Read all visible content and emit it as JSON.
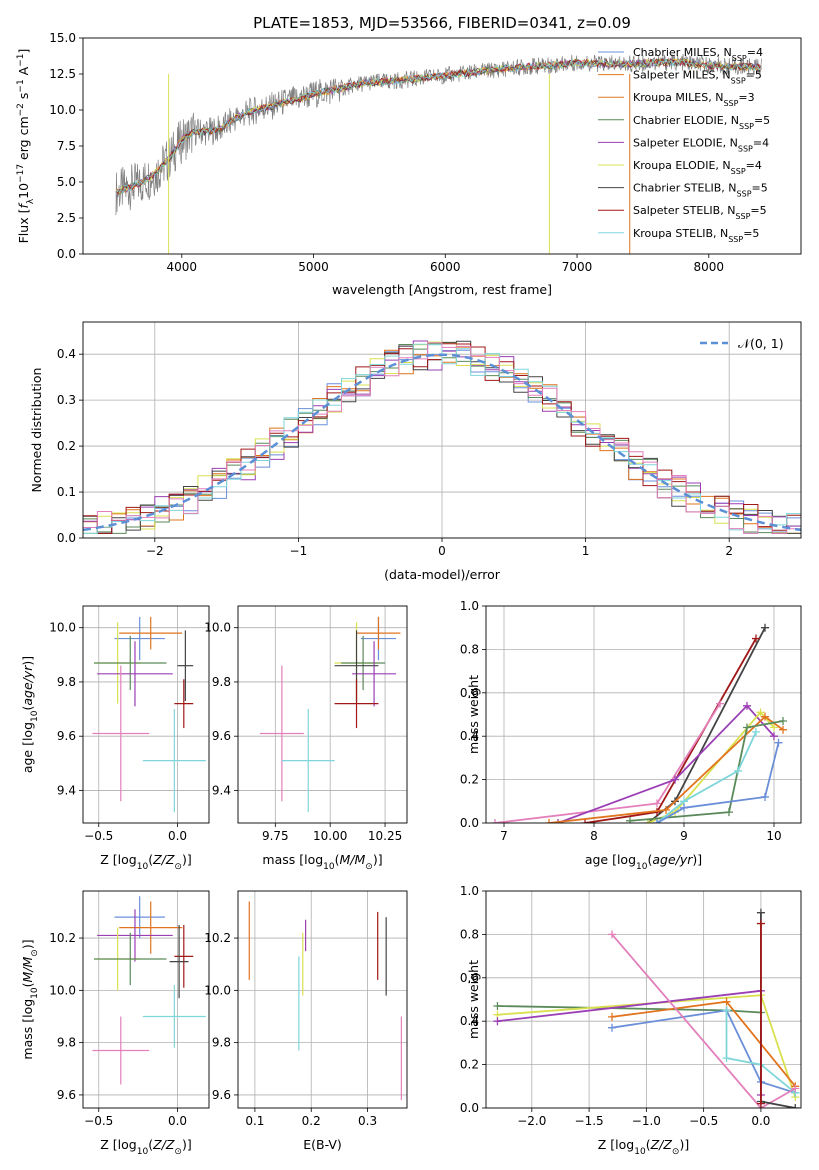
{
  "figure_title": "PLATE=1853, MJD=53566, FIBERID=0341, z=0.09",
  "colors": {
    "data_spectrum": "#7f7f7f",
    "chabrier_miles": "#6a8fd8",
    "salpeter_miles": "#e1741e",
    "kroupa_miles": "#e07b27",
    "chabrier_elodie": "#5a8a5a",
    "salpeter_elodie": "#9b3fb5",
    "kroupa_elodie": "#d9e050",
    "chabrier_stelib": "#444444",
    "salpeter_stelib": "#a01818",
    "kroupa_stelib": "#7fd6da",
    "pink": "#e37fbb",
    "normal": "#5b8fd6"
  },
  "chart_data": [
    {
      "id": "spectrum",
      "type": "line",
      "title": "PLATE=1853, MJD=53566, FIBERID=0341, z=0.09",
      "xlabel": "wavelength [Angstrom, rest frame]",
      "ylabel": "Flux [f_λ10^-17 erg cm^-2 s^-1 A^-1]",
      "xlim": [
        3250,
        8700
      ],
      "ylim": [
        0,
        15
      ],
      "xticks": [
        4000,
        5000,
        6000,
        7000,
        8000
      ],
      "yticks": [
        0.0,
        2.5,
        5.0,
        7.5,
        10.0,
        12.5,
        15.0
      ],
      "legend_position": "right",
      "series": [
        {
          "name": "Chabrier MILES, N_SSP=4",
          "key": "chabrier_miles"
        },
        {
          "name": "Salpeter MILES, N_SSP=5",
          "key": "salpeter_miles"
        },
        {
          "name": "Kroupa MILES, N_SSP=3",
          "key": "kroupa_miles"
        },
        {
          "name": "Chabrier ELODIE, N_SSP=5",
          "key": "chabrier_elodie"
        },
        {
          "name": "Salpeter ELODIE, N_SSP=4",
          "key": "salpeter_elodie"
        },
        {
          "name": "Kroupa ELODIE, N_SSP=4",
          "key": "kroupa_elodie"
        },
        {
          "name": "Chabrier STELIB, N_SSP=5",
          "key": "chabrier_stelib"
        },
        {
          "name": "Salpeter STELIB, N_SSP=5",
          "key": "salpeter_stelib"
        },
        {
          "name": "Kroupa STELIB, N_SSP=5",
          "key": "kroupa_stelib"
        }
      ],
      "data_spectrum": {
        "x": [
          3500,
          3600,
          3700,
          3800,
          3900,
          4000,
          4100,
          4200,
          4300,
          4400,
          4500,
          4600,
          4700,
          4800,
          4900,
          5000,
          5200,
          5400,
          5600,
          5800,
          6000,
          6200,
          6400,
          6600,
          6800,
          7000,
          7200,
          7400,
          7600,
          7800,
          8000,
          8200,
          8400
        ],
        "y": [
          4.3,
          4.6,
          5.0,
          5.6,
          6.6,
          7.9,
          8.5,
          8.5,
          8.7,
          9.4,
          9.8,
          10.1,
          10.3,
          10.6,
          10.8,
          11.1,
          11.5,
          11.9,
          12.0,
          12.2,
          12.4,
          12.6,
          12.8,
          13.0,
          13.1,
          13.3,
          13.2,
          13.2,
          13.3,
          13.3,
          13.1,
          13.0,
          13.0
        ]
      }
    },
    {
      "id": "residuals",
      "type": "histogram",
      "xlabel": "(data-model)/error",
      "ylabel": "Normed distribution",
      "xlim": [
        -2.5,
        2.5
      ],
      "ylim": [
        0,
        0.47
      ],
      "xticks": [
        -2,
        -1,
        0,
        1,
        2
      ],
      "yticks": [
        0.0,
        0.1,
        0.2,
        0.3,
        0.4
      ],
      "grid": true,
      "legend_position": "top-right",
      "legend": "𝒩(0, 1)"
    },
    {
      "id": "age_vs_Z",
      "type": "errorbar",
      "xlabel": "Z [log10(Z/Z⊙)]",
      "ylabel": "age  [log10(age/yr)]",
      "xlim": [
        -0.6,
        0.2
      ],
      "ylim": [
        9.28,
        10.08
      ],
      "xticks": [
        -0.5,
        0.0
      ],
      "yticks": [
        9.4,
        9.6,
        9.8,
        10.0
      ],
      "points": [
        {
          "key": "chabrier_miles",
          "x": -0.24,
          "xerr": 0.16,
          "y": 9.96,
          "yerr": 0.08
        },
        {
          "key": "salpeter_miles",
          "x": -0.17,
          "xerr": 0.2,
          "y": 9.98,
          "yerr": 0.06
        },
        {
          "key": "kroupa_elodie",
          "x": -0.38,
          "xerr": 0.15,
          "y": 9.87,
          "yerr": 0.15
        },
        {
          "key": "chabrier_elodie",
          "x": -0.3,
          "xerr": 0.23,
          "y": 9.87,
          "yerr": 0.1
        },
        {
          "key": "salpeter_elodie",
          "x": -0.27,
          "xerr": 0.24,
          "y": 9.83,
          "yerr": 0.12
        },
        {
          "key": "chabrier_stelib",
          "x": 0.05,
          "xerr": 0.05,
          "y": 9.86,
          "yerr": 0.13
        },
        {
          "key": "salpeter_stelib",
          "x": 0.04,
          "xerr": 0.06,
          "y": 9.72,
          "yerr": 0.09
        },
        {
          "key": "pink",
          "x": -0.36,
          "xerr": 0.18,
          "y": 9.61,
          "yerr": 0.25
        },
        {
          "key": "kroupa_stelib",
          "x": -0.02,
          "xerr": 0.2,
          "y": 9.51,
          "yerr": 0.19
        }
      ]
    },
    {
      "id": "age_vs_mass",
      "type": "errorbar",
      "xlabel": "mass [log10(M/M⊙)]",
      "xlim": [
        9.58,
        10.35
      ],
      "ylim": [
        9.28,
        10.08
      ],
      "xticks": [
        9.75,
        10.0,
        10.25
      ],
      "yticks": [
        9.4,
        9.6,
        9.8,
        10.0
      ],
      "points": [
        {
          "key": "chabrier_miles",
          "x": 10.22,
          "xerr": 0.08,
          "y": 9.96,
          "yerr": 0.08
        },
        {
          "key": "salpeter_miles",
          "x": 10.22,
          "xerr": 0.1,
          "y": 9.98,
          "yerr": 0.06
        },
        {
          "key": "kroupa_elodie",
          "x": 10.12,
          "xerr": 0.1,
          "y": 9.87,
          "yerr": 0.15
        },
        {
          "key": "chabrier_elodie",
          "x": 10.15,
          "xerr": 0.1,
          "y": 9.87,
          "yerr": 0.1
        },
        {
          "key": "salpeter_elodie",
          "x": 10.2,
          "xerr": 0.1,
          "y": 9.83,
          "yerr": 0.12
        },
        {
          "key": "chabrier_stelib",
          "x": 10.12,
          "xerr": 0.1,
          "y": 9.86,
          "yerr": 0.13
        },
        {
          "key": "salpeter_stelib",
          "x": 10.12,
          "xerr": 0.1,
          "y": 9.72,
          "yerr": 0.09
        },
        {
          "key": "pink",
          "x": 9.78,
          "xerr": 0.1,
          "y": 9.61,
          "yerr": 0.25
        },
        {
          "key": "kroupa_stelib",
          "x": 9.9,
          "xerr": 0.12,
          "y": 9.51,
          "yerr": 0.19
        }
      ]
    },
    {
      "id": "mass_weight_vs_age",
      "type": "line",
      "xlabel": "age  [log10(age/yr)]",
      "ylabel": "mass weight",
      "xlim": [
        6.8,
        10.3
      ],
      "ylim": [
        0,
        1
      ],
      "xticks": [
        7,
        8,
        9,
        10
      ],
      "yticks": [
        0.0,
        0.2,
        0.4,
        0.6,
        0.8,
        1.0
      ],
      "grid": true,
      "series": [
        {
          "key": "chabrier_stelib",
          "x": [
            8.6,
            8.9,
            9.9
          ],
          "y": [
            0.0,
            0.1,
            0.9
          ]
        },
        {
          "key": "salpeter_stelib",
          "x": [
            7.9,
            8.7,
            9.8
          ],
          "y": [
            0.0,
            0.05,
            0.85
          ]
        },
        {
          "key": "pink",
          "x": [
            6.9,
            8.7,
            9.4
          ],
          "y": [
            0.0,
            0.09,
            0.55
          ]
        },
        {
          "key": "salpeter_elodie",
          "x": [
            7.6,
            8.9,
            9.7,
            10.0
          ],
          "y": [
            0.0,
            0.2,
            0.54,
            0.4
          ]
        },
        {
          "key": "kroupa_elodie",
          "x": [
            8.6,
            8.9,
            9.85,
            10.0
          ],
          "y": [
            0.0,
            0.05,
            0.51,
            0.44
          ]
        },
        {
          "key": "salpeter_miles",
          "x": [
            7.5,
            8.8,
            9.9,
            10.1
          ],
          "y": [
            0.0,
            0.06,
            0.49,
            0.43
          ]
        },
        {
          "key": "chabrier_elodie",
          "x": [
            8.4,
            9.5,
            9.7,
            10.1
          ],
          "y": [
            0.01,
            0.05,
            0.44,
            0.47
          ]
        },
        {
          "key": "kroupa_stelib",
          "x": [
            8.7,
            9.0,
            9.6,
            9.8
          ],
          "y": [
            0.0,
            0.1,
            0.24,
            0.42
          ]
        },
        {
          "key": "chabrier_miles",
          "x": [
            8.7,
            9.0,
            9.9,
            10.05
          ],
          "y": [
            0.0,
            0.07,
            0.12,
            0.37
          ]
        }
      ]
    },
    {
      "id": "mass_vs_Z",
      "type": "errorbar",
      "xlabel": "Z [log10(Z/Z⊙)]",
      "ylabel": "mass [log10(M/M⊙)]",
      "xlim": [
        -0.6,
        0.2
      ],
      "ylim": [
        9.55,
        10.38
      ],
      "xticks": [
        -0.5,
        0.0
      ],
      "yticks": [
        9.6,
        9.8,
        10.0,
        10.2
      ],
      "points": [
        {
          "key": "chabrier_miles",
          "x": -0.24,
          "xerr": 0.16,
          "y": 10.28,
          "yerr": 0.08
        },
        {
          "key": "salpeter_miles",
          "x": -0.17,
          "xerr": 0.2,
          "y": 10.24,
          "yerr": 0.1
        },
        {
          "key": "salpeter_elodie",
          "x": -0.27,
          "xerr": 0.24,
          "y": 10.21,
          "yerr": 0.1
        },
        {
          "key": "kroupa_elodie",
          "x": -0.38,
          "xerr": 0.15,
          "y": 10.12,
          "yerr": 0.12
        },
        {
          "key": "chabrier_elodie",
          "x": -0.3,
          "xerr": 0.23,
          "y": 10.12,
          "yerr": 0.1
        },
        {
          "key": "salpeter_stelib",
          "x": 0.04,
          "xerr": 0.06,
          "y": 10.13,
          "yerr": 0.12
        },
        {
          "key": "chabrier_stelib",
          "x": 0.01,
          "xerr": 0.06,
          "y": 10.11,
          "yerr": 0.14
        },
        {
          "key": "kroupa_stelib",
          "x": -0.02,
          "xerr": 0.2,
          "y": 9.9,
          "yerr": 0.12
        },
        {
          "key": "pink",
          "x": -0.36,
          "xerr": 0.18,
          "y": 9.77,
          "yerr": 0.13
        }
      ]
    },
    {
      "id": "mass_vs_ebv",
      "type": "errorbar",
      "xlabel": "E(B-V)",
      "xlim": [
        0.07,
        0.37
      ],
      "ylim": [
        9.55,
        10.38
      ],
      "xticks": [
        0.1,
        0.2,
        0.3
      ],
      "yticks": [
        9.6,
        9.8,
        10.0,
        10.2
      ],
      "points": [
        {
          "key": "salpeter_miles",
          "x": 0.09,
          "y": 10.19,
          "yerr": 0.15
        },
        {
          "key": "kroupa_stelib",
          "x": 0.178,
          "y": 9.95,
          "yerr": 0.18
        },
        {
          "key": "kroupa_elodie",
          "x": 0.185,
          "y": 10.1,
          "yerr": 0.12
        },
        {
          "key": "salpeter_elodie",
          "x": 0.19,
          "y": 10.21,
          "yerr": 0.06
        },
        {
          "key": "salpeter_stelib",
          "x": 0.318,
          "y": 10.17,
          "yerr": 0.13
        },
        {
          "key": "chabrier_stelib",
          "x": 0.333,
          "y": 10.13,
          "yerr": 0.15
        },
        {
          "key": "pink",
          "x": 0.36,
          "y": 9.74,
          "yerr": 0.16
        }
      ]
    },
    {
      "id": "mass_weight_vs_Z",
      "type": "line",
      "xlabel": "Z [log10(Z/Z⊙)]",
      "ylabel": "mass weight",
      "xlim": [
        -2.4,
        0.35
      ],
      "ylim": [
        0,
        1
      ],
      "xticks": [
        -2.0,
        -1.5,
        -1.0,
        -0.5,
        0.0
      ],
      "yticks": [
        0.0,
        0.2,
        0.4,
        0.6,
        0.8,
        1.0
      ],
      "grid": true,
      "series": [
        {
          "key": "chabrier_elodie",
          "x": [
            -2.3,
            -0.3,
            0.0
          ],
          "y": [
            0.47,
            0.45,
            0.44
          ]
        },
        {
          "key": "kroupa_elodie",
          "x": [
            -2.3,
            0.0,
            0.3
          ],
          "y": [
            0.43,
            0.52,
            0.05
          ]
        },
        {
          "key": "salpeter_elodie",
          "x": [
            -2.3,
            0.0,
            0.0
          ],
          "y": [
            0.4,
            0.54,
            0.06
          ]
        },
        {
          "key": "salpeter_miles",
          "x": [
            -1.3,
            -0.3,
            0.3
          ],
          "y": [
            0.42,
            0.49,
            0.1
          ]
        },
        {
          "key": "chabrier_miles",
          "x": [
            -1.3,
            -0.3,
            0.0,
            0.3
          ],
          "y": [
            0.37,
            0.45,
            0.12,
            0.07
          ]
        },
        {
          "key": "kroupa_stelib",
          "x": [
            -0.3,
            -0.3,
            0.0,
            0.3
          ],
          "y": [
            0.45,
            0.23,
            0.2,
            0.07
          ]
        },
        {
          "key": "pink",
          "x": [
            -1.3,
            0.0,
            0.3
          ],
          "y": [
            0.8,
            0.0,
            0.09
          ]
        },
        {
          "key": "chabrier_stelib",
          "x": [
            0.0,
            0.0,
            0.3
          ],
          "y": [
            0.9,
            0.03,
            0.0
          ]
        },
        {
          "key": "salpeter_stelib",
          "x": [
            0.0,
            0.0
          ],
          "y": [
            0.85,
            0.02
          ]
        }
      ]
    }
  ]
}
